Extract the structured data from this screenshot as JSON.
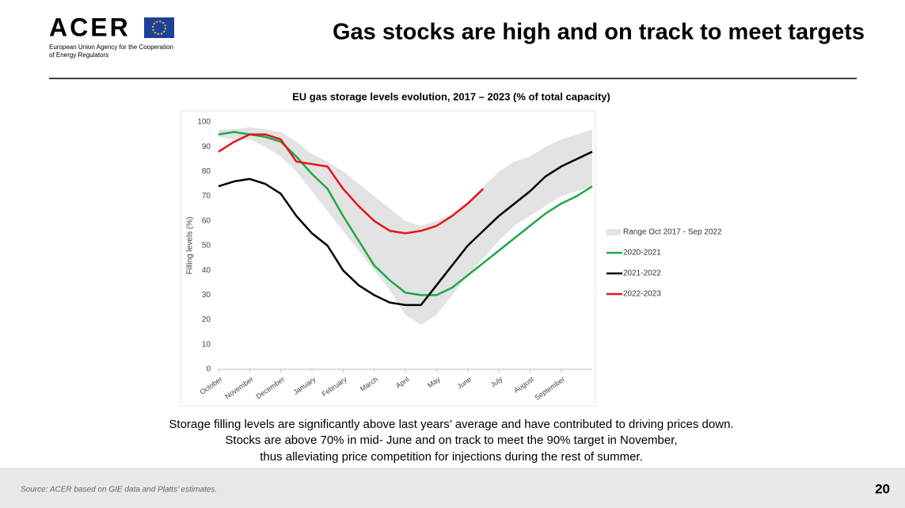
{
  "header": {
    "logo": "ACER",
    "agency_line1": "European Union Agency for the Cooperation",
    "agency_line2": "of Energy Regulators",
    "title": "Gas stocks are high and on track to meet targets"
  },
  "chart_data": {
    "type": "line",
    "title": "EU gas storage levels evolution, 2017 – 2023 (% of total capacity)",
    "y_label": "Filling levels (%)",
    "x": [
      0,
      0.5,
      1,
      1.5,
      2,
      2.5,
      3,
      3.5,
      4,
      4.5,
      5,
      5.5,
      6,
      6.5,
      7,
      7.5,
      8,
      8.5,
      9,
      9.5,
      10,
      10.5,
      11,
      11.5,
      12
    ],
    "xlim": [
      0,
      12
    ],
    "xticks": [
      {
        "value": 0,
        "label": "October"
      },
      {
        "value": 1,
        "label": "November"
      },
      {
        "value": 2,
        "label": "December"
      },
      {
        "value": 3,
        "label": "January"
      },
      {
        "value": 4,
        "label": "February"
      },
      {
        "value": 5,
        "label": "March"
      },
      {
        "value": 6,
        "label": "April"
      },
      {
        "value": 7,
        "label": "May"
      },
      {
        "value": 8,
        "label": "June"
      },
      {
        "value": 9,
        "label": "July"
      },
      {
        "value": 10,
        "label": "August"
      },
      {
        "value": 11,
        "label": "September"
      }
    ],
    "ylim": [
      0,
      100
    ],
    "yticks": [
      0,
      10,
      20,
      30,
      40,
      50,
      60,
      70,
      80,
      90,
      100
    ],
    "range": {
      "name": "Range Oct 2017 - Sep 2022",
      "color": "#e3e3e3",
      "high": [
        97,
        97,
        98,
        97,
        96,
        92,
        87,
        84,
        80,
        75,
        70,
        65,
        60,
        58,
        60,
        63,
        68,
        74,
        80,
        84,
        86,
        90,
        93,
        95,
        97
      ],
      "low": [
        94,
        93,
        93,
        90,
        86,
        80,
        72,
        64,
        56,
        48,
        40,
        32,
        22,
        18,
        22,
        30,
        38,
        45,
        52,
        58,
        62,
        66,
        70,
        72,
        74
      ]
    },
    "series": [
      {
        "name": "2020-2021",
        "color": "#1fa847",
        "values": [
          95,
          96,
          95,
          94,
          92,
          86,
          79,
          73,
          62,
          52,
          42,
          36,
          31,
          30,
          30,
          33,
          38,
          43,
          48,
          53,
          58,
          63,
          67,
          70,
          74
        ]
      },
      {
        "name": "2021-2022",
        "color": "#000000",
        "values": [
          74,
          76,
          77,
          75,
          71,
          62,
          55,
          50,
          40,
          34,
          30,
          27,
          26,
          26,
          34,
          42,
          50,
          56,
          62,
          67,
          72,
          78,
          82,
          85,
          88
        ]
      },
      {
        "name": "2022-2023",
        "color": "#e8141b",
        "values": [
          88,
          92,
          95,
          95,
          93,
          84,
          83,
          82,
          73,
          66,
          60,
          56,
          55,
          56,
          58,
          62,
          67,
          73,
          null,
          null,
          null,
          null,
          null,
          null,
          null
        ]
      }
    ]
  },
  "body": [
    "Storage filling levels are significantly above last years’ average and have contributed to driving prices down.",
    "Stocks are above 70% in mid- June and on track to meet the 90% target in November,",
    "thus alleviating price competition for injections during the rest of summer."
  ],
  "footer": {
    "source": "Source: ACER based on GIE data and Platts’ estimates.",
    "page": "20"
  }
}
